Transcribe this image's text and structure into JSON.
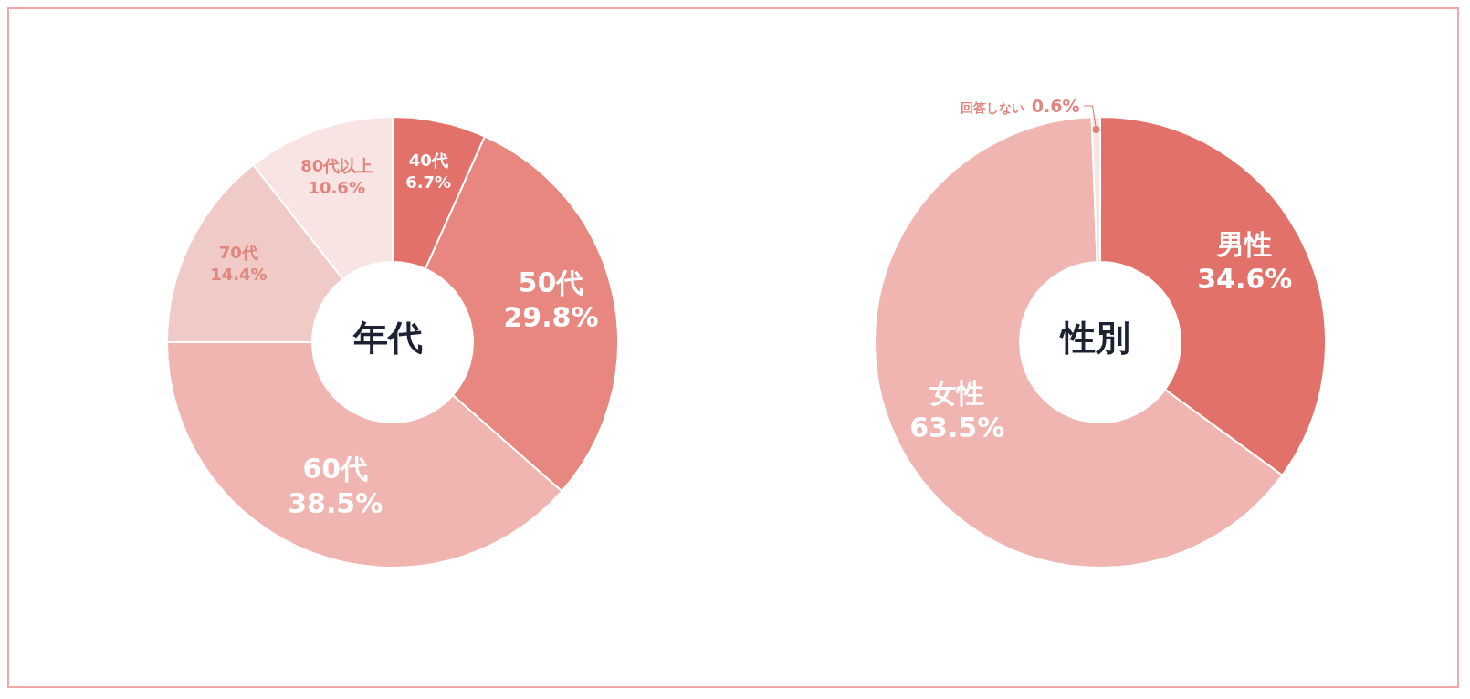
{
  "chart_data": [
    {
      "type": "donut",
      "title": "年代",
      "categories": [
        "40代",
        "50代",
        "60代",
        "70代",
        "80代以上"
      ],
      "values": [
        6.7,
        29.8,
        38.5,
        14.4,
        10.6
      ],
      "colors": [
        "#e2716a",
        "#e8877f",
        "#f0b5b1",
        "#f0cac7",
        "#f8e5e3"
      ],
      "value_labels": [
        "6.7%",
        "29.8%",
        "38.5%",
        "14.4%",
        "10.6%"
      ],
      "legend": false
    },
    {
      "type": "donut",
      "title": "性別",
      "categories": [
        "男性",
        "女性",
        "回答しない"
      ],
      "values": [
        34.6,
        63.5,
        0.6
      ],
      "colors": [
        "#e2716a",
        "#f0b5b1",
        "#f8e5e3"
      ],
      "value_labels": [
        "34.6%",
        "63.5%",
        "0.6%"
      ],
      "legend": false
    }
  ]
}
